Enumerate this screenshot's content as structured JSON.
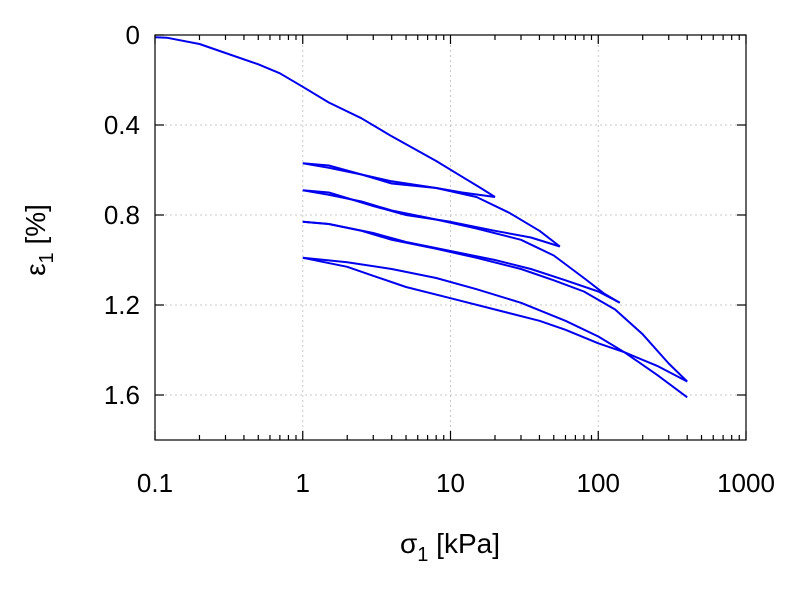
{
  "chart_data": {
    "type": "line",
    "title": "",
    "xlabel": {
      "symbol": "σ",
      "sub": "1",
      "rest": " [kPa]"
    },
    "ylabel": {
      "symbol": "ε",
      "sub": "1",
      "rest": " [%]"
    },
    "xscale": "log",
    "xlim": [
      0.1,
      1000
    ],
    "ylim": [
      1.8,
      0
    ],
    "y_inverted": true,
    "grid": true,
    "xticks": [
      0.1,
      1,
      10,
      100,
      1000
    ],
    "xtick_labels": [
      "0.1",
      "1",
      "10",
      "100",
      "1000"
    ],
    "yticks": [
      0,
      0.4,
      0.8,
      1.2,
      1.6
    ],
    "ytick_labels": [
      "0",
      "0.4",
      "0.8",
      "1.2",
      "1.6"
    ],
    "line_color": "#0000ee",
    "series": [
      {
        "points": [
          [
            0.1,
            0.01
          ],
          [
            0.12,
            0.012
          ],
          [
            0.2,
            0.04
          ],
          [
            0.3,
            0.08
          ],
          [
            0.5,
            0.13
          ],
          [
            0.7,
            0.17
          ],
          [
            1,
            0.23
          ],
          [
            1.5,
            0.3
          ],
          [
            2.5,
            0.37
          ],
          [
            4,
            0.45
          ],
          [
            8,
            0.56
          ],
          [
            12,
            0.63
          ],
          [
            16,
            0.68
          ],
          [
            20,
            0.72
          ]
        ]
      },
      {
        "points": [
          [
            20,
            0.72
          ],
          [
            12,
            0.7
          ],
          [
            8,
            0.68
          ],
          [
            4,
            0.66
          ],
          [
            2.5,
            0.62
          ],
          [
            1.5,
            0.58
          ],
          [
            1,
            0.57
          ]
        ]
      },
      {
        "points": [
          [
            1,
            0.57
          ],
          [
            1.5,
            0.59
          ],
          [
            2.5,
            0.62
          ],
          [
            4,
            0.65
          ],
          [
            8,
            0.68
          ],
          [
            15,
            0.72
          ],
          [
            25,
            0.79
          ],
          [
            40,
            0.87
          ],
          [
            55,
            0.94
          ]
        ]
      },
      {
        "points": [
          [
            55,
            0.94
          ],
          [
            35,
            0.9
          ],
          [
            20,
            0.87
          ],
          [
            10,
            0.83
          ],
          [
            5,
            0.8
          ],
          [
            3,
            0.76
          ],
          [
            1.5,
            0.7
          ],
          [
            1,
            0.69
          ]
        ]
      },
      {
        "points": [
          [
            1,
            0.69
          ],
          [
            1.5,
            0.71
          ],
          [
            2.5,
            0.74
          ],
          [
            4,
            0.78
          ],
          [
            8,
            0.82
          ],
          [
            15,
            0.86
          ],
          [
            30,
            0.91
          ],
          [
            50,
            0.98
          ],
          [
            80,
            1.08
          ],
          [
            110,
            1.15
          ],
          [
            140,
            1.19
          ]
        ]
      },
      {
        "points": [
          [
            140,
            1.19
          ],
          [
            100,
            1.14
          ],
          [
            60,
            1.09
          ],
          [
            35,
            1.04
          ],
          [
            20,
            1.0
          ],
          [
            10,
            0.96
          ],
          [
            5,
            0.92
          ],
          [
            3,
            0.88
          ],
          [
            1.5,
            0.84
          ],
          [
            1,
            0.83
          ]
        ]
      },
      {
        "points": [
          [
            1,
            0.83
          ],
          [
            1.5,
            0.84
          ],
          [
            2.5,
            0.87
          ],
          [
            4,
            0.91
          ],
          [
            8,
            0.95
          ],
          [
            15,
            0.99
          ],
          [
            30,
            1.04
          ],
          [
            50,
            1.09
          ],
          [
            80,
            1.14
          ],
          [
            130,
            1.22
          ],
          [
            200,
            1.33
          ],
          [
            300,
            1.46
          ],
          [
            400,
            1.54
          ]
        ]
      },
      {
        "points": [
          [
            400,
            1.54
          ],
          [
            250,
            1.47
          ],
          [
            150,
            1.41
          ],
          [
            100,
            1.37
          ],
          [
            60,
            1.31
          ],
          [
            40,
            1.27
          ],
          [
            20,
            1.22
          ],
          [
            10,
            1.17
          ],
          [
            5,
            1.12
          ],
          [
            3,
            1.07
          ],
          [
            2,
            1.03
          ],
          [
            1,
            0.99
          ]
        ]
      },
      {
        "points": [
          [
            1,
            0.99
          ],
          [
            2,
            1.01
          ],
          [
            4,
            1.04
          ],
          [
            8,
            1.08
          ],
          [
            15,
            1.13
          ],
          [
            30,
            1.19
          ],
          [
            60,
            1.27
          ],
          [
            100,
            1.34
          ],
          [
            150,
            1.41
          ],
          [
            250,
            1.51
          ],
          [
            400,
            1.61
          ]
        ]
      }
    ]
  }
}
